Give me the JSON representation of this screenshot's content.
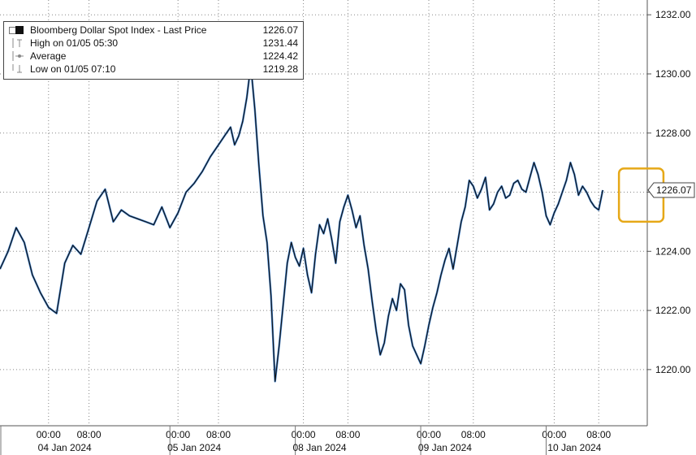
{
  "legend": {
    "items": [
      {
        "label": "Bloomberg Dollar Spot Index - Last Price",
        "value": "1226.07"
      },
      {
        "label": "High on 01/05 05:30",
        "value": "1231.44"
      },
      {
        "label": "Average",
        "value": "1224.42"
      },
      {
        "label": "Low on 01/05 07:10",
        "value": "1219.28"
      }
    ]
  },
  "chart_data": {
    "type": "line",
    "title": "",
    "xlabel": "",
    "ylabel": "",
    "ylim": [
      1218.1,
      1232.5
    ],
    "yticks": [
      1220,
      1222,
      1224,
      1226,
      1228,
      1230,
      1232
    ],
    "ytick_labels": [
      "1220.00",
      "1222.00",
      "1224.00",
      "1226.00",
      "1228.00",
      "1230.00",
      "1232.00"
    ],
    "last_price_label": "1226.07",
    "last_price": 1226.07,
    "grid": true,
    "legend_position": "top-left",
    "colors": {
      "line": "#111111",
      "accent": "#2a73c9",
      "highlight_box": "#e6a817",
      "grid": "#888888"
    },
    "x_time_labels": [
      "00:00",
      "08:00",
      "00:00",
      "08:00",
      "00:00",
      "08:00",
      "00:00",
      "08:00",
      "00:00",
      "08:00"
    ],
    "x_date_labels": [
      "04 Jan 2024",
      "05 Jan 2024",
      "08 Jan 2024",
      "09 Jan 2024",
      "10 Jan 2024"
    ],
    "highlight": {
      "x_range": [
        153,
        164
      ],
      "y_range": [
        1225.0,
        1226.8
      ]
    },
    "series": [
      {
        "points": [
          [
            0,
            1223.4
          ],
          [
            2,
            1224.0
          ],
          [
            4,
            1224.8
          ],
          [
            6,
            1224.3
          ],
          [
            8,
            1223.2
          ],
          [
            10,
            1222.6
          ],
          [
            12,
            1222.1
          ],
          [
            14,
            1221.9
          ],
          [
            16,
            1223.6
          ],
          [
            18,
            1224.2
          ],
          [
            20,
            1223.9
          ],
          [
            22,
            1224.8
          ],
          [
            24,
            1225.7
          ],
          [
            26,
            1226.1
          ],
          [
            28,
            1225.0
          ],
          [
            30,
            1225.4
          ],
          [
            32,
            1225.2
          ],
          [
            34,
            1225.1
          ],
          [
            36,
            1225.0
          ],
          [
            38,
            1224.9
          ],
          [
            40,
            1225.5
          ],
          [
            42,
            1224.8
          ],
          [
            44,
            1225.3
          ],
          [
            46,
            1226.0
          ],
          [
            48,
            1226.3
          ],
          [
            50,
            1226.7
          ],
          [
            52,
            1227.2
          ],
          [
            54,
            1227.6
          ],
          [
            56,
            1228.0
          ],
          [
            57,
            1228.2
          ],
          [
            58,
            1227.6
          ],
          [
            59,
            1227.9
          ],
          [
            60,
            1228.4
          ],
          [
            61,
            1229.2
          ],
          [
            62,
            1230.3
          ],
          [
            63,
            1228.8
          ],
          [
            64,
            1226.9
          ],
          [
            65,
            1225.2
          ],
          [
            66,
            1224.3
          ],
          [
            67,
            1222.5
          ],
          [
            68,
            1219.6
          ],
          [
            69,
            1220.8
          ],
          [
            70,
            1222.2
          ],
          [
            71,
            1223.6
          ],
          [
            72,
            1224.3
          ],
          [
            73,
            1223.8
          ],
          [
            74,
            1223.5
          ],
          [
            75,
            1224.1
          ],
          [
            76,
            1223.2
          ],
          [
            77,
            1222.6
          ],
          [
            78,
            1223.9
          ],
          [
            79,
            1224.9
          ],
          [
            80,
            1224.6
          ],
          [
            81,
            1225.1
          ],
          [
            82,
            1224.4
          ],
          [
            83,
            1223.6
          ],
          [
            84,
            1225.0
          ],
          [
            85,
            1225.5
          ],
          [
            86,
            1225.9
          ],
          [
            87,
            1225.4
          ],
          [
            88,
            1224.8
          ],
          [
            89,
            1225.2
          ],
          [
            90,
            1224.2
          ],
          [
            91,
            1223.4
          ],
          [
            92,
            1222.3
          ],
          [
            93,
            1221.3
          ],
          [
            94,
            1220.5
          ],
          [
            95,
            1220.9
          ],
          [
            96,
            1221.8
          ],
          [
            97,
            1222.4
          ],
          [
            98,
            1222.0
          ],
          [
            99,
            1222.9
          ],
          [
            100,
            1222.7
          ],
          [
            101,
            1221.5
          ],
          [
            102,
            1220.8
          ],
          [
            103,
            1220.5
          ],
          [
            104,
            1220.2
          ],
          [
            105,
            1220.8
          ],
          [
            106,
            1221.5
          ],
          [
            107,
            1222.1
          ],
          [
            108,
            1222.6
          ],
          [
            109,
            1223.2
          ],
          [
            110,
            1223.7
          ],
          [
            111,
            1224.1
          ],
          [
            112,
            1223.4
          ],
          [
            113,
            1224.2
          ],
          [
            114,
            1225.0
          ],
          [
            115,
            1225.5
          ],
          [
            116,
            1226.4
          ],
          [
            117,
            1226.2
          ],
          [
            118,
            1225.8
          ],
          [
            119,
            1226.1
          ],
          [
            120,
            1226.5
          ],
          [
            121,
            1225.4
          ],
          [
            122,
            1225.6
          ],
          [
            123,
            1226.0
          ],
          [
            124,
            1226.2
          ],
          [
            125,
            1225.8
          ],
          [
            126,
            1225.9
          ],
          [
            127,
            1226.3
          ],
          [
            128,
            1226.4
          ],
          [
            129,
            1226.1
          ],
          [
            130,
            1226.0
          ],
          [
            131,
            1226.5
          ],
          [
            132,
            1227.0
          ],
          [
            133,
            1226.6
          ],
          [
            134,
            1226.0
          ],
          [
            135,
            1225.2
          ],
          [
            136,
            1224.9
          ],
          [
            137,
            1225.3
          ],
          [
            138,
            1225.6
          ],
          [
            139,
            1226.0
          ],
          [
            140,
            1226.4
          ],
          [
            141,
            1227.0
          ],
          [
            142,
            1226.6
          ],
          [
            143,
            1225.9
          ],
          [
            144,
            1226.2
          ],
          [
            145,
            1226.0
          ],
          [
            146,
            1225.7
          ],
          [
            147,
            1225.5
          ],
          [
            148,
            1225.4
          ],
          [
            149,
            1226.07
          ]
        ]
      }
    ]
  }
}
